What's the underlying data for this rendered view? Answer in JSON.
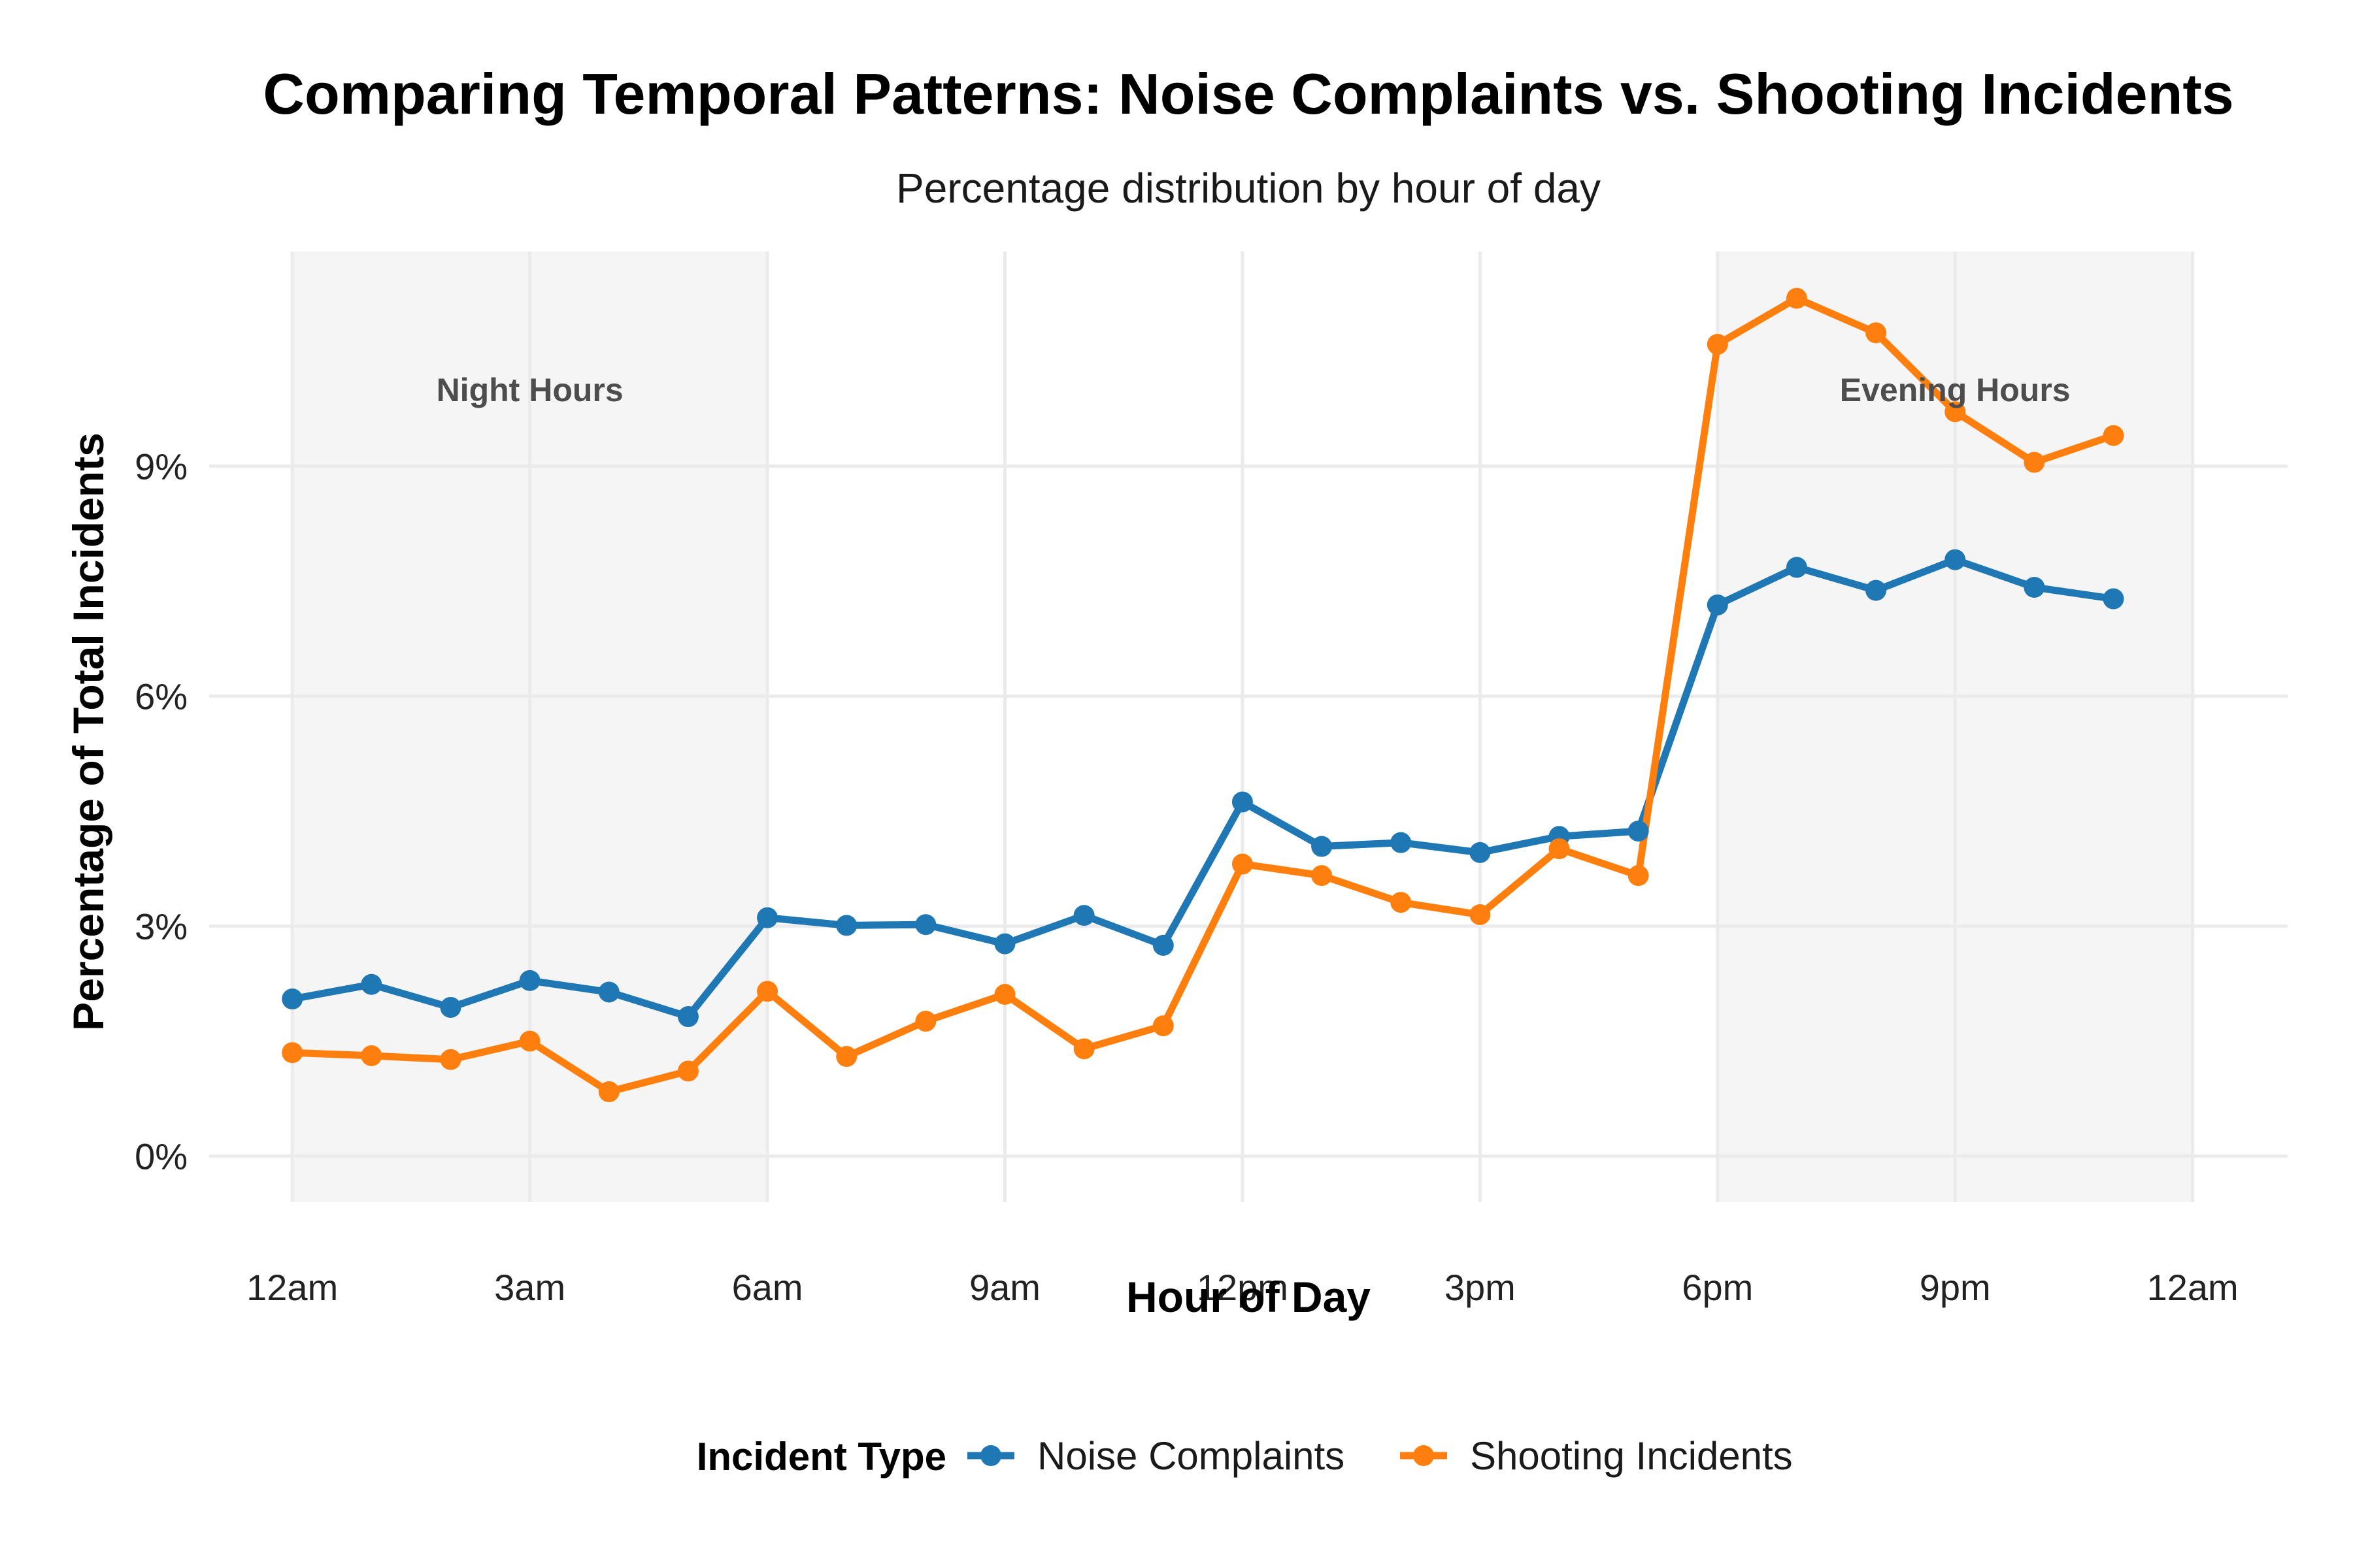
{
  "chart_data": {
    "type": "line",
    "title": "Comparing Temporal Patterns: Noise Complaints vs. Shooting Incidents",
    "subtitle": "Percentage distribution by hour of day",
    "xlabel": "Hour of Day",
    "ylabel": "Percentage of Total Incidents",
    "x": [
      0,
      1,
      2,
      3,
      4,
      5,
      6,
      7,
      8,
      9,
      10,
      11,
      12,
      13,
      14,
      15,
      16,
      17,
      18,
      19,
      20,
      21,
      22,
      23
    ],
    "xlim": [
      -1.05,
      25.2
    ],
    "ylim": [
      -0.6,
      11.8
    ],
    "x_ticks": [
      {
        "value": 0,
        "label": "12am"
      },
      {
        "value": 3,
        "label": "3am"
      },
      {
        "value": 6,
        "label": "6am"
      },
      {
        "value": 9,
        "label": "9am"
      },
      {
        "value": 12,
        "label": "12pm"
      },
      {
        "value": 15,
        "label": "3pm"
      },
      {
        "value": 18,
        "label": "6pm"
      },
      {
        "value": 21,
        "label": "9pm"
      },
      {
        "value": 24,
        "label": "12am"
      }
    ],
    "y_ticks": [
      {
        "value": 0,
        "label": "0%"
      },
      {
        "value": 3,
        "label": "3%"
      },
      {
        "value": 6,
        "label": "6%"
      },
      {
        "value": 9,
        "label": "9%"
      }
    ],
    "grid": true,
    "shaded_regions": [
      {
        "from": 0,
        "to": 6,
        "label": "Night Hours",
        "label_x": 3,
        "label_y": 10.0
      },
      {
        "from": 18,
        "to": 24,
        "label": "Evening Hours",
        "label_x": 21,
        "label_y": 10.0
      }
    ],
    "series": [
      {
        "name": "Noise Complaints",
        "color": "#1f77b4",
        "values": [
          2.05,
          2.24,
          1.94,
          2.29,
          2.14,
          1.82,
          3.11,
          3.01,
          3.02,
          2.77,
          3.14,
          2.75,
          4.62,
          4.04,
          4.09,
          3.96,
          4.17,
          4.24,
          7.19,
          7.68,
          7.38,
          7.78,
          7.42,
          7.27
        ]
      },
      {
        "name": "Shooting Incidents",
        "color": "#ff7f0e",
        "values": [
          1.35,
          1.31,
          1.26,
          1.5,
          0.84,
          1.11,
          2.15,
          1.3,
          1.76,
          2.11,
          1.4,
          1.7,
          3.81,
          3.66,
          3.31,
          3.15,
          4.01,
          3.66,
          10.59,
          11.19,
          10.74,
          9.71,
          9.05,
          9.4
        ]
      }
    ],
    "legend": {
      "title": "Incident Type",
      "position": "bottom"
    }
  }
}
